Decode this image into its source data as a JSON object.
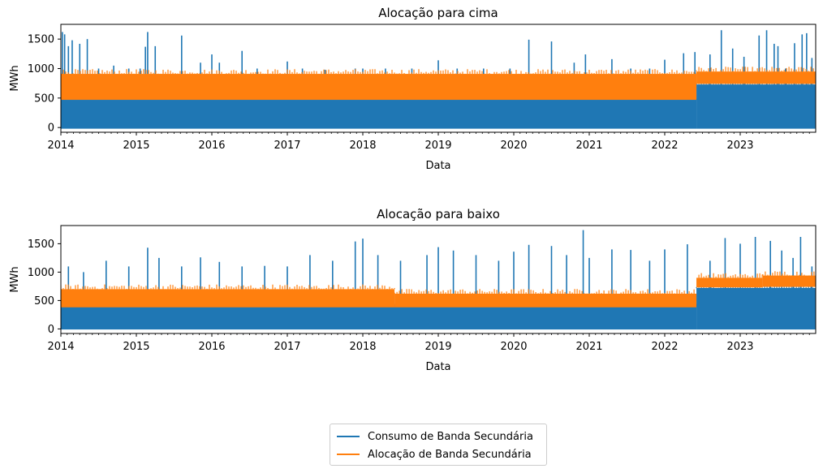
{
  "colors": {
    "consumo": "#1f77b4",
    "alocacao": "#ff7f0e"
  },
  "chart_data": [
    {
      "type": "line",
      "title": "Alocação para cima",
      "xlabel": "Data",
      "ylabel": "MWh",
      "xlim": [
        2014,
        2024
      ],
      "ylim": [
        -80,
        1750
      ],
      "xticks": [
        2014,
        2015,
        2016,
        2017,
        2018,
        2019,
        2020,
        2021,
        2022,
        2023
      ],
      "xtick_labels": [
        "2014",
        "2015",
        "2016",
        "2017",
        "2018",
        "2019",
        "2020",
        "2021",
        "2022",
        "2023"
      ],
      "yticks": [
        0,
        500,
        1000,
        1500
      ],
      "ytick_labels": [
        "0",
        "500",
        "1000",
        "1500"
      ],
      "grid": false,
      "series": [
        {
          "name": "Consumo de Banda Secundária",
          "color": "#1f77b4",
          "band_segments": [
            {
              "x": [
                2014.0,
                2022.42
              ],
              "low": -20,
              "high": 470
            },
            {
              "x": [
                2022.42,
                2024.0
              ],
              "low": -20,
              "high": 730
            }
          ],
          "spikes": [
            [
              2014.02,
              1620
            ],
            [
              2014.05,
              1580
            ],
            [
              2014.1,
              1380
            ],
            [
              2014.15,
              1480
            ],
            [
              2014.25,
              1420
            ],
            [
              2014.35,
              1500
            ],
            [
              2014.5,
              1000
            ],
            [
              2014.7,
              1050
            ],
            [
              2014.9,
              1000
            ],
            [
              2015.05,
              1000
            ],
            [
              2015.12,
              1370
            ],
            [
              2015.15,
              1620
            ],
            [
              2015.25,
              1380
            ],
            [
              2015.6,
              1560
            ],
            [
              2015.85,
              1100
            ],
            [
              2016.0,
              1240
            ],
            [
              2016.1,
              1100
            ],
            [
              2016.4,
              1300
            ],
            [
              2016.6,
              1000
            ],
            [
              2017.0,
              1120
            ],
            [
              2017.2,
              1000
            ],
            [
              2017.5,
              980
            ],
            [
              2017.9,
              1000
            ],
            [
              2018.0,
              1000
            ],
            [
              2018.3,
              1000
            ],
            [
              2018.65,
              1000
            ],
            [
              2019.0,
              1140
            ],
            [
              2019.25,
              1000
            ],
            [
              2019.6,
              1000
            ],
            [
              2019.95,
              1000
            ],
            [
              2020.2,
              1490
            ],
            [
              2020.5,
              1460
            ],
            [
              2020.8,
              1100
            ],
            [
              2020.95,
              1240
            ],
            [
              2021.3,
              1160
            ],
            [
              2021.55,
              1000
            ],
            [
              2021.8,
              1000
            ],
            [
              2022.0,
              1150
            ],
            [
              2022.25,
              1260
            ],
            [
              2022.4,
              1280
            ],
            [
              2022.6,
              1240
            ],
            [
              2022.75,
              1650
            ],
            [
              2022.9,
              1340
            ],
            [
              2023.05,
              1200
            ],
            [
              2023.25,
              1560
            ],
            [
              2023.35,
              1650
            ],
            [
              2023.45,
              1420
            ],
            [
              2023.5,
              1380
            ],
            [
              2023.6,
              1000
            ],
            [
              2023.72,
              1430
            ],
            [
              2023.82,
              1580
            ],
            [
              2023.88,
              1600
            ],
            [
              2023.95,
              1180
            ]
          ]
        },
        {
          "name": "Alocação de Banda Secundária",
          "color": "#ff7f0e",
          "band_segments": [
            {
              "x": [
                2014.0,
                2022.42
              ],
              "low": 470,
              "high": 910
            },
            {
              "x": [
                2022.42,
                2024.0
              ],
              "low": 740,
              "high": 950
            }
          ],
          "spikes": []
        }
      ]
    },
    {
      "type": "line",
      "title": "Alocação para baixo",
      "xlabel": "Data",
      "ylabel": "MWh",
      "xlim": [
        2014,
        2024
      ],
      "ylim": [
        -80,
        1820
      ],
      "xticks": [
        2014,
        2015,
        2016,
        2017,
        2018,
        2019,
        2020,
        2021,
        2022,
        2023
      ],
      "xtick_labels": [
        "2014",
        "2015",
        "2016",
        "2017",
        "2018",
        "2019",
        "2020",
        "2021",
        "2022",
        "2023"
      ],
      "yticks": [
        0,
        500,
        1000,
        1500
      ],
      "ytick_labels": [
        "0",
        "500",
        "1000",
        "1500"
      ],
      "grid": false,
      "series": [
        {
          "name": "Consumo de Banda Secundária",
          "color": "#1f77b4",
          "band_segments": [
            {
              "x": [
                2014.0,
                2022.42
              ],
              "low": -10,
              "high": 390
            },
            {
              "x": [
                2022.42,
                2024.0
              ],
              "low": -10,
              "high": 720
            }
          ],
          "spikes": [
            [
              2014.1,
              1100
            ],
            [
              2014.3,
              1000
            ],
            [
              2014.6,
              1200
            ],
            [
              2014.9,
              1100
            ],
            [
              2015.15,
              1430
            ],
            [
              2015.3,
              1250
            ],
            [
              2015.6,
              1100
            ],
            [
              2015.85,
              1260
            ],
            [
              2016.1,
              1180
            ],
            [
              2016.4,
              1100
            ],
            [
              2016.7,
              1110
            ],
            [
              2017.0,
              1100
            ],
            [
              2017.3,
              1300
            ],
            [
              2017.6,
              1200
            ],
            [
              2017.9,
              1540
            ],
            [
              2018.0,
              1590
            ],
            [
              2018.2,
              1300
            ],
            [
              2018.5,
              1200
            ],
            [
              2018.85,
              1300
            ],
            [
              2019.0,
              1440
            ],
            [
              2019.2,
              1380
            ],
            [
              2019.5,
              1300
            ],
            [
              2019.8,
              1200
            ],
            [
              2020.0,
              1360
            ],
            [
              2020.2,
              1480
            ],
            [
              2020.5,
              1460
            ],
            [
              2020.7,
              1300
            ],
            [
              2020.92,
              1740
            ],
            [
              2021.0,
              1250
            ],
            [
              2021.3,
              1400
            ],
            [
              2021.55,
              1390
            ],
            [
              2021.8,
              1200
            ],
            [
              2022.0,
              1400
            ],
            [
              2022.3,
              1490
            ],
            [
              2022.6,
              1200
            ],
            [
              2022.8,
              1600
            ],
            [
              2023.0,
              1500
            ],
            [
              2023.2,
              1620
            ],
            [
              2023.4,
              1550
            ],
            [
              2023.55,
              1380
            ],
            [
              2023.7,
              1250
            ],
            [
              2023.8,
              1620
            ],
            [
              2023.95,
              1100
            ]
          ]
        },
        {
          "name": "Alocação de Banda Secundária",
          "color": "#ff7f0e",
          "band_segments": [
            {
              "x": [
                2014.0,
                2018.42
              ],
              "low": 380,
              "high": 700
            },
            {
              "x": [
                2018.42,
                2022.42
              ],
              "low": 380,
              "high": 620
            },
            {
              "x": [
                2022.42,
                2023.3
              ],
              "low": 730,
              "high": 900
            },
            {
              "x": [
                2023.3,
                2024.0
              ],
              "low": 740,
              "high": 940
            }
          ],
          "spikes": []
        }
      ]
    }
  ],
  "legend": {
    "placement": "bottom-center",
    "items": [
      "Consumo de Banda Secundária",
      "Alocação de Banda Secundária"
    ]
  }
}
